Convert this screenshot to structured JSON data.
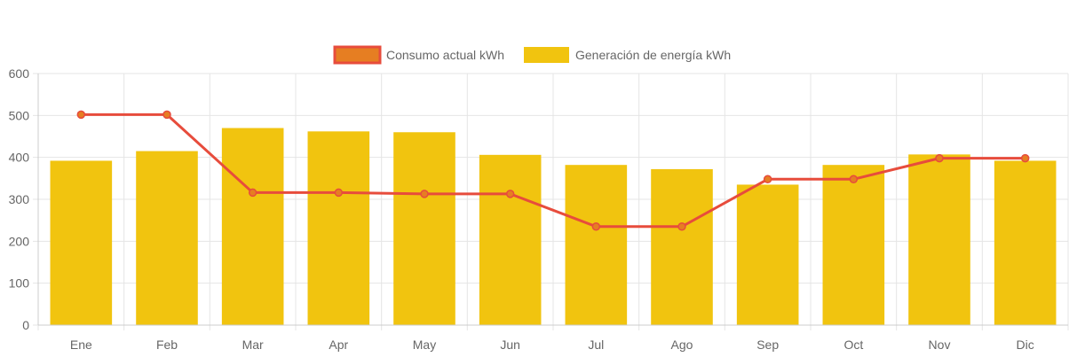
{
  "chart_data": {
    "type": "bar",
    "categories": [
      "Ene",
      "Feb",
      "Mar",
      "Apr",
      "May",
      "Jun",
      "Jul",
      "Ago",
      "Sep",
      "Oct",
      "Nov",
      "Dic"
    ],
    "series": [
      {
        "name": "Consumo actual kWh",
        "type": "line",
        "values": [
          502,
          502,
          316,
          316,
          313,
          313,
          235,
          235,
          348,
          348,
          398,
          398
        ],
        "color": "#e74c3c",
        "point_color": "#e67e22"
      },
      {
        "name": "Generación de energía kWh",
        "type": "bar",
        "values": [
          392,
          415,
          470,
          462,
          460,
          406,
          382,
          372,
          335,
          382,
          407,
          392
        ],
        "color": "#f1c40f"
      }
    ],
    "title": "",
    "xlabel": "",
    "ylabel": "",
    "ylim": [
      0,
      600
    ],
    "yticks": [
      0,
      100,
      200,
      300,
      400,
      500,
      600
    ],
    "grid": true,
    "legend_position": "top"
  }
}
